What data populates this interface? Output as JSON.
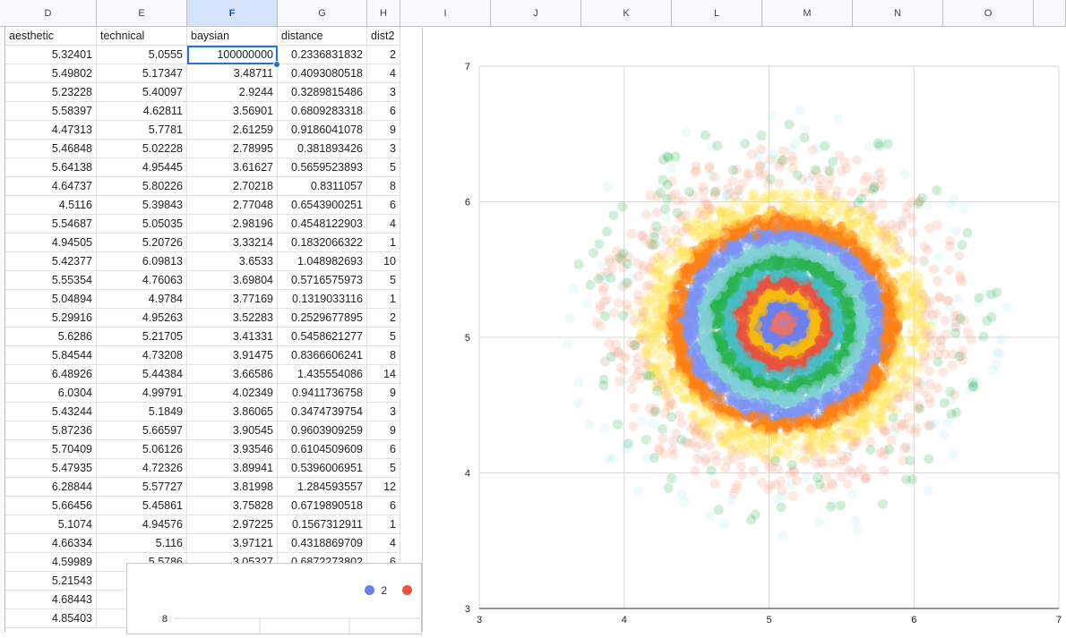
{
  "columns": [
    "D",
    "E",
    "F",
    "G",
    "H",
    "I",
    "J",
    "K",
    "L",
    "M",
    "N",
    "O"
  ],
  "selected_column": "F",
  "headers": [
    "aesthetic",
    "technical",
    "baysian",
    "distance",
    "dist2"
  ],
  "rows": [
    [
      "5.32401",
      "5.0555",
      "100000000",
      "0.2336831832",
      "2"
    ],
    [
      "5.49802",
      "5.17347",
      "3.48711",
      "0.4093080518",
      "4"
    ],
    [
      "5.23228",
      "5.40097",
      "2.9244",
      "0.3289815486",
      "3"
    ],
    [
      "5.58397",
      "4.62811",
      "3.56901",
      "0.6809283318",
      "6"
    ],
    [
      "4.47313",
      "5.7781",
      "2.61259",
      "0.9186041078",
      "9"
    ],
    [
      "5.46848",
      "5.02228",
      "2.78995",
      "0.381893426",
      "3"
    ],
    [
      "5.64138",
      "4.95445",
      "3.61627",
      "0.5659523893",
      "5"
    ],
    [
      "4.64737",
      "5.80226",
      "2.70218",
      "0.8311057",
      "8"
    ],
    [
      "4.5116",
      "5.39843",
      "2.77048",
      "0.6543900251",
      "6"
    ],
    [
      "5.54687",
      "5.05035",
      "2.98196",
      "0.4548122903",
      "4"
    ],
    [
      "4.94505",
      "5.20726",
      "3.33214",
      "0.1832066322",
      "1"
    ],
    [
      "5.42377",
      "6.09813",
      "3.6533",
      "1.048982693",
      "10"
    ],
    [
      "5.55354",
      "4.76063",
      "3.69804",
      "0.5716575973",
      "5"
    ],
    [
      "5.04894",
      "4.9784",
      "3.77169",
      "0.1319033116",
      "1"
    ],
    [
      "5.29916",
      "4.95263",
      "3.52283",
      "0.2529677895",
      "2"
    ],
    [
      "5.6286",
      "5.21705",
      "3.41331",
      "0.5458621277",
      "5"
    ],
    [
      "5.84544",
      "4.73208",
      "3.91475",
      "0.8366606241",
      "8"
    ],
    [
      "6.48926",
      "5.44384",
      "3.66586",
      "1.435554086",
      "14"
    ],
    [
      "6.0304",
      "4.99791",
      "4.02349",
      "0.9411736758",
      "9"
    ],
    [
      "5.43244",
      "5.1849",
      "3.86065",
      "0.3474739754",
      "3"
    ],
    [
      "5.87236",
      "5.66597",
      "3.90545",
      "0.9603909259",
      "9"
    ],
    [
      "5.70409",
      "5.06126",
      "3.93546",
      "0.6104509609",
      "6"
    ],
    [
      "5.47935",
      "4.72326",
      "3.89941",
      "0.5396006951",
      "5"
    ],
    [
      "6.28844",
      "5.57727",
      "3.81998",
      "1.284593557",
      "12"
    ],
    [
      "5.66456",
      "5.45861",
      "3.75828",
      "0.6719890518",
      "6"
    ],
    [
      "5.1074",
      "4.94576",
      "2.97225",
      "0.1567312911",
      "1"
    ],
    [
      "4.66334",
      "5.116",
      "3.97121",
      "0.4318869709",
      "4"
    ],
    [
      "4.59989",
      "5.5786",
      "3.05327",
      "0.6872273802",
      "6"
    ],
    [
      "5.21543",
      "",
      "",
      "",
      ""
    ],
    [
      "4.68443",
      "",
      "",
      "",
      ""
    ],
    [
      "4.85403",
      "",
      "",
      "",
      ""
    ]
  ],
  "chart_data": {
    "type": "scatter",
    "x_range": [
      3,
      7
    ],
    "y_range": [
      3,
      7
    ],
    "x_ticks": [
      "3",
      "4",
      "5",
      "6",
      "7"
    ],
    "y_ticks": [
      "3",
      "4",
      "5",
      "6",
      "7"
    ],
    "grid": true,
    "center": [
      5.1,
      5.1
    ],
    "series_colors": [
      "#6b7ff0",
      "#e8503f",
      "#f5b90f",
      "#34a853",
      "#f57c3b",
      "#46bdc6",
      "#7b92f5",
      "#7ecfd6",
      "#2ab34f",
      "#ff7f11",
      "#ffe65a",
      "#f7b6a0"
    ]
  },
  "second_chart": {
    "y_tick": "8",
    "legend": [
      {
        "label": "2",
        "color": "#6b7ff0"
      },
      {
        "label": "",
        "color": "#e8503f"
      }
    ]
  }
}
